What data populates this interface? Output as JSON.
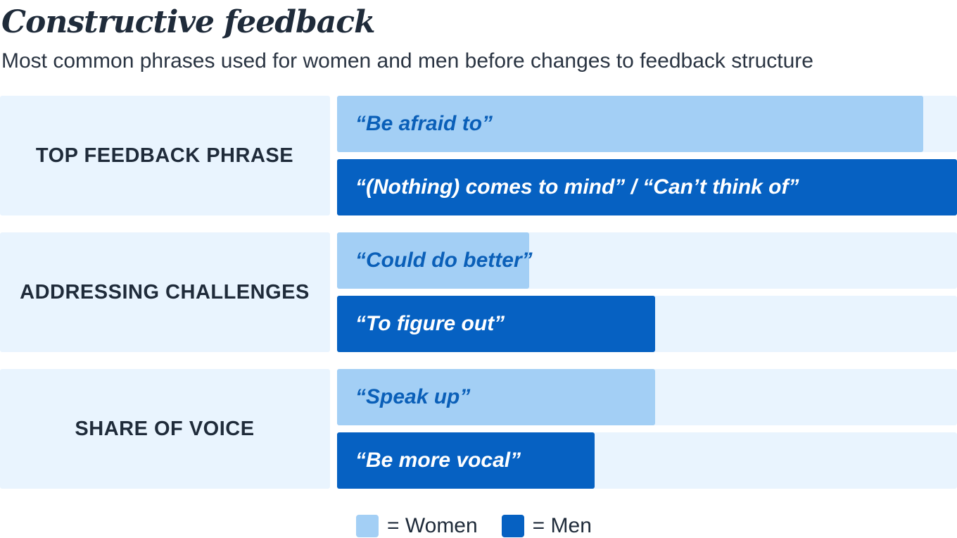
{
  "title": "Constructive feedback",
  "subtitle": "Most common phrases used for women and men before changes to feedback structure",
  "chart_data": {
    "type": "bar",
    "orientation": "horizontal",
    "groups": [
      {
        "label": "TOP FEEDBACK PHRASE",
        "bars": [
          {
            "series": "Women",
            "phrase": "“Be afraid to”",
            "value": 0.945
          },
          {
            "series": "Men",
            "phrase": "“(Nothing) comes to mind” / “Can’t think of”",
            "value": 1.0
          }
        ]
      },
      {
        "label": "ADDRESSING CHALLENGES",
        "bars": [
          {
            "series": "Women",
            "phrase": "“Could do better”",
            "value": 0.31
          },
          {
            "series": "Men",
            "phrase": "“To figure out”",
            "value": 0.513
          }
        ]
      },
      {
        "label": "SHARE OF VOICE",
        "bars": [
          {
            "series": "Women",
            "phrase": "“Speak up”",
            "value": 0.513
          },
          {
            "series": "Men",
            "phrase": "“Be more vocal”",
            "value": 0.416
          }
        ]
      }
    ],
    "xlim": [
      0,
      1
    ],
    "axis_labels_shown": false,
    "grid": false,
    "legend_position": "bottom-center"
  },
  "legend": [
    {
      "label": "= Women",
      "color": "#a3cff5"
    },
    {
      "label": "= Men",
      "color": "#0661c2"
    }
  ],
  "colors": {
    "women": "#a3cff5",
    "men": "#0661c2",
    "panel": "#e9f4fe"
  }
}
